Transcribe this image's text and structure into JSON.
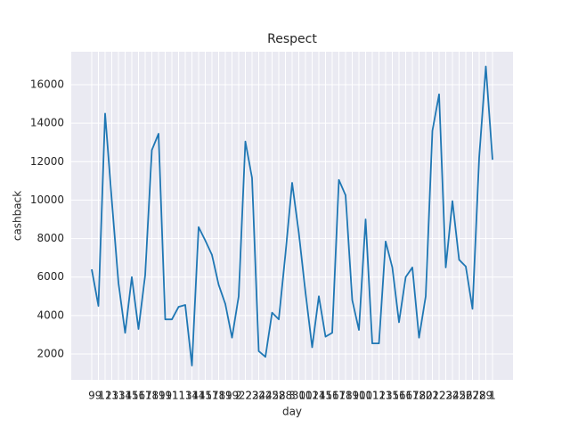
{
  "chart_data": {
    "type": "line",
    "title": "Respect",
    "x_label": "day",
    "y_label": "cashback",
    "categories": [
      "9",
      "9",
      "12",
      "13",
      "13",
      "14",
      "15",
      "16",
      "17",
      "18",
      "19",
      "19",
      "11",
      "11",
      "13",
      "14",
      "14",
      "15",
      "17",
      "18",
      "19",
      "19",
      "2",
      "22",
      "23",
      "24",
      "24",
      "25",
      "28",
      "28",
      "3",
      "30",
      "10",
      "12",
      "14",
      "15",
      "16",
      "17",
      "18",
      "19",
      "10",
      "10",
      "11",
      "12",
      "13",
      "15",
      "16",
      "16",
      "17",
      "18",
      "20",
      "21",
      "22",
      "23",
      "24",
      "25",
      "26",
      "27",
      "28",
      "29",
      "1"
    ],
    "series": [
      {
        "name": "cashback",
        "color": "#1f77b4",
        "values": [
          6400,
          4500,
          14500,
          10000,
          5700,
          3100,
          6000,
          3300,
          6100,
          12600,
          13450,
          3800,
          3800,
          4450,
          4550,
          1400,
          8600,
          7900,
          7150,
          5600,
          4600,
          2850,
          5000,
          13050,
          11150,
          2150,
          1850,
          4150,
          3800,
          7200,
          10900,
          8300,
          5200,
          2350,
          5000,
          2900,
          3100,
          11050,
          10250,
          4800,
          3250,
          9000,
          2550,
          2550,
          7850,
          6500,
          3650,
          6000,
          6500,
          2850,
          5000,
          13600,
          15500,
          6500,
          9950,
          6900,
          6550,
          4350,
          12200,
          16950,
          12100
        ]
      }
    ],
    "ylim": [
      656,
      17715
    ],
    "yticks": [
      2000,
      4000,
      6000,
      8000,
      10000,
      12000,
      14000,
      16000
    ],
    "grid": true,
    "background": "#eaeaf2"
  }
}
